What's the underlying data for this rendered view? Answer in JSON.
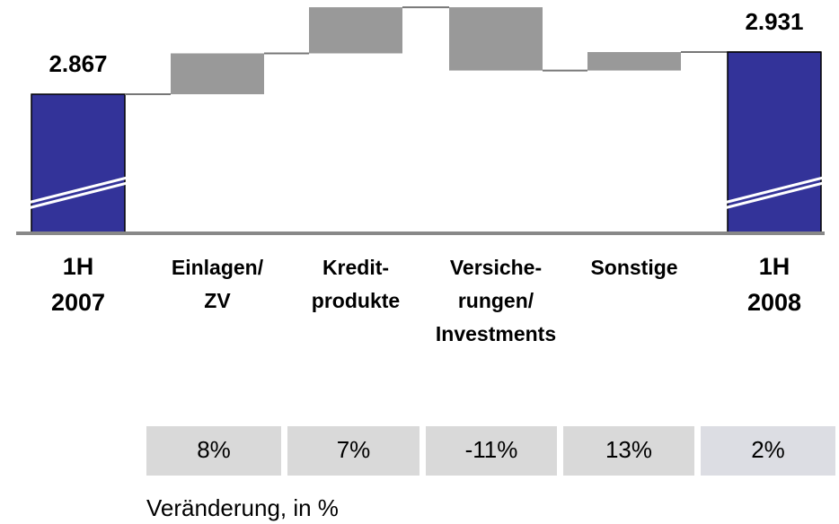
{
  "chart_data": {
    "type": "waterfall",
    "categories": [
      "1H\n2007",
      "Einlagen/\nZV",
      "Kredit-\nprodukte",
      "Versiche-\nrungen/\nInvestments",
      "Sonstige",
      "1H\n2008"
    ],
    "values": [
      2.867,
      0.062,
      0.07,
      -0.096,
      0.028,
      2.931
    ],
    "total_color": "#333399",
    "delta_color": "#999999",
    "ylim": [
      2.656,
      3.01
    ],
    "changes": [
      "8%",
      "7%",
      "-11%",
      "13%",
      "2%"
    ],
    "changes_label": "Veränderung, in %"
  }
}
